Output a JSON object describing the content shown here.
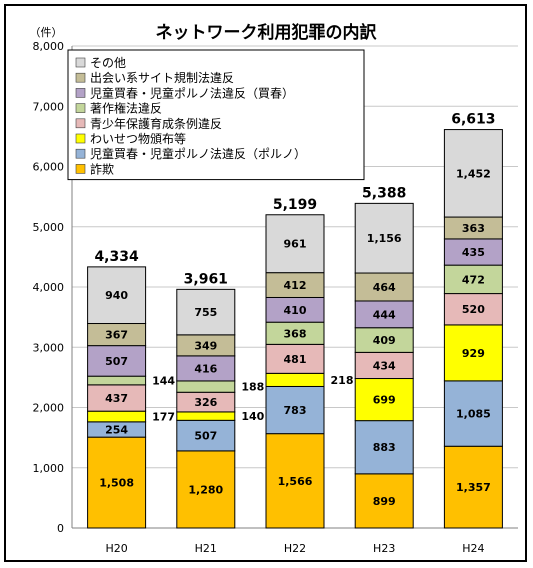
{
  "chart_data": {
    "type": "bar",
    "stacked": true,
    "title": "ネットワーク利用犯罪の内訳",
    "unit_label": "（件）",
    "ylim": [
      0,
      8000
    ],
    "y_ticks": [
      "0",
      "1,000",
      "2,000",
      "3,000",
      "4,000",
      "5,000",
      "6,000",
      "7,000",
      "8,000"
    ],
    "y_tick_values": [
      0,
      1000,
      2000,
      3000,
      4000,
      5000,
      6000,
      7000,
      8000
    ],
    "grid": true,
    "legend_position": "top-left",
    "categories": [
      "H20",
      "H21",
      "H22",
      "H23",
      "H24"
    ],
    "totals": [
      "4,334",
      "3,961",
      "5,199",
      "5,388",
      "6,613"
    ],
    "series": [
      {
        "name": "詐欺",
        "color": "#FFC000",
        "values": [
          1508,
          1280,
          1566,
          899,
          1357
        ],
        "labels": [
          "1,508",
          "1,280",
          "1,566",
          "899",
          "1,357"
        ]
      },
      {
        "name": "児童買春・児童ポルノ法違反（ポルノ）",
        "color": "#95B3D7",
        "values": [
          254,
          507,
          783,
          883,
          1085
        ],
        "labels": [
          "254",
          "507",
          "783",
          "883",
          "1,085"
        ]
      },
      {
        "name": "わいせつ物頒布等",
        "color": "#FFFF00",
        "values": [
          177,
          140,
          218,
          699,
          929
        ],
        "labels": [
          "177",
          "140",
          "218",
          "699",
          "929"
        ]
      },
      {
        "name": "青少年保護育成条例違反",
        "color": "#E6B9B8",
        "values": [
          437,
          326,
          481,
          434,
          520
        ],
        "labels": [
          "437",
          "326",
          "481",
          "434",
          "520"
        ]
      },
      {
        "name": "著作権法違反",
        "color": "#C3D69B",
        "values": [
          144,
          188,
          368,
          409,
          472
        ],
        "labels": [
          "144",
          "188",
          "368",
          "409",
          "472"
        ]
      },
      {
        "name": "児童買春・児童ポルノ法違反（買春）",
        "color": "#B3A2C7",
        "values": [
          507,
          416,
          410,
          444,
          435
        ],
        "labels": [
          "507",
          "416",
          "410",
          "444",
          "435"
        ]
      },
      {
        "name": "出会い系サイト規制法違反",
        "color": "#C4BD97",
        "values": [
          367,
          349,
          412,
          464,
          363
        ],
        "labels": [
          "367",
          "349",
          "412",
          "464",
          "363"
        ]
      },
      {
        "name": "その他",
        "color": "#D9D9D9",
        "values": [
          940,
          755,
          961,
          1156,
          1452
        ],
        "labels": [
          "940",
          "755",
          "961",
          "1,156",
          "1,452"
        ]
      }
    ],
    "legend_order": [
      "その他",
      "出会い系サイト規制法違反",
      "児童買春・児童ポルノ法違反（買春）",
      "著作権法違反",
      "青少年保護育成条例違反",
      "わいせつ物頒布等",
      "児童買春・児童ポルノ法違反（ポルノ）",
      "詐欺"
    ],
    "outside_labels": [
      {
        "category": "H20",
        "series": "著作権法違反"
      },
      {
        "category": "H20",
        "series": "わいせつ物頒布等"
      },
      {
        "category": "H21",
        "series": "著作権法違反"
      },
      {
        "category": "H21",
        "series": "わいせつ物頒布等"
      },
      {
        "category": "H22",
        "series": "わいせつ物頒布等"
      }
    ]
  }
}
